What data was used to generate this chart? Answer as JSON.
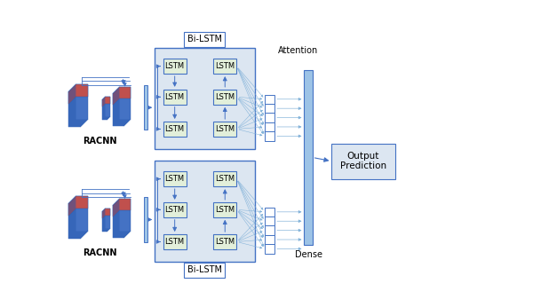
{
  "bg_color": "#ffffff",
  "arrow_color": "#4472c4",
  "arrow_color_light": "#7fb0d8",
  "lstm_fill": "#e2efda",
  "lstm_edge": "#4472c4",
  "bilstm_bg": "#dce6f1",
  "bilstm_edge": "#4472c4",
  "dense_fill": "#9dc3e6",
  "dense_edge": "#4472c4",
  "output_fill": "#dce6f1",
  "output_edge": "#4472c4",
  "attn_fill": "#ffffff",
  "attn_edge": "#4472c4",
  "cnn_red": "#c0504d",
  "cnn_blue": "#4472c4",
  "cnn_blue_dark": "#2255aa",
  "label_racnn": "RACNN",
  "label_attention": "Attention",
  "label_dense": "Dense",
  "label_output": "Output\nPrediction",
  "label_bilstm": "Bi-LSTM",
  "label_lstm": "LSTM",
  "lstm_fontsize": 6,
  "label_fontsize": 7,
  "racnn_fontsize": 7
}
